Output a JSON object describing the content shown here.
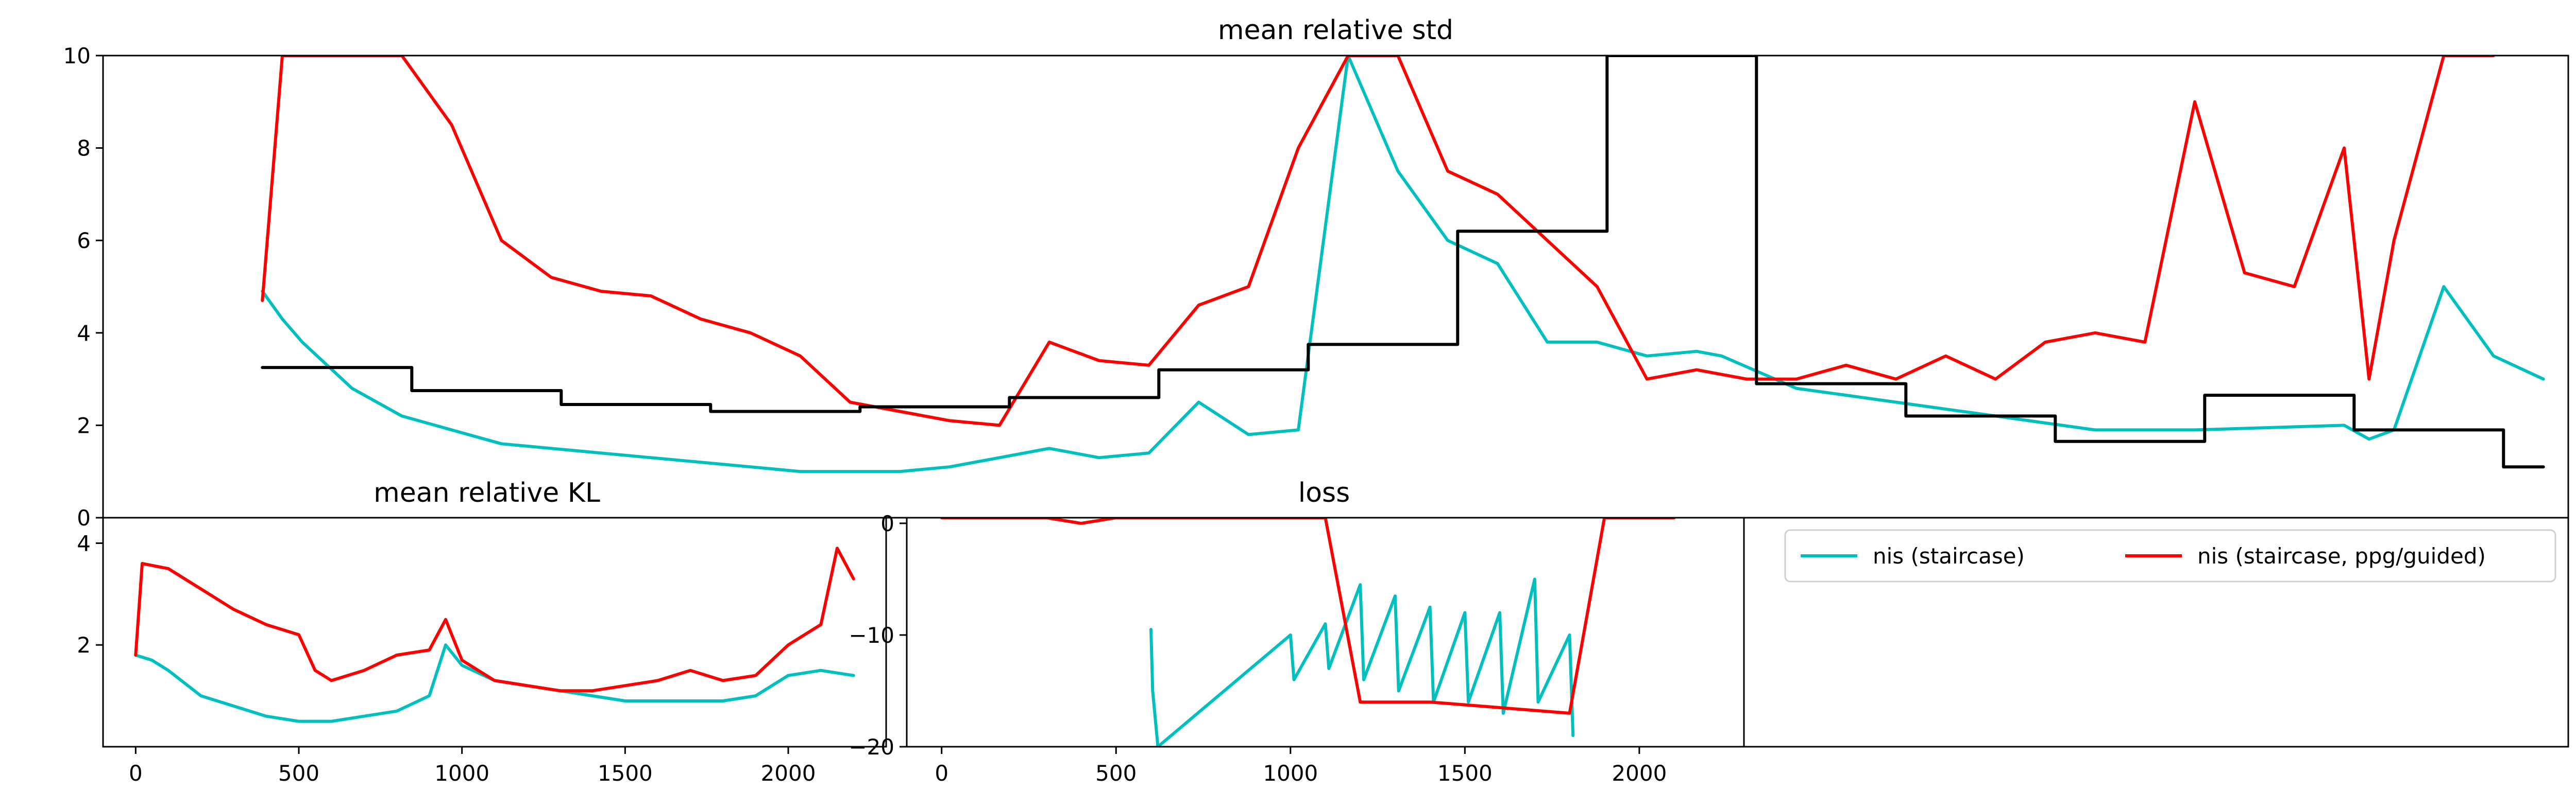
{
  "chart_data": [
    {
      "type": "line",
      "title": "mean relative std",
      "xlabel": "",
      "ylabel": "",
      "xlim": [
        -100,
        4850
      ],
      "ylim": [
        0,
        10
      ],
      "yticks": [
        0,
        2,
        4,
        6,
        8,
        10
      ],
      "yticklabels": [
        "0",
        "2",
        "4",
        "6",
        "8",
        "10"
      ],
      "xticks_visible": false,
      "series": [
        {
          "color": "#00bfbf",
          "x": [
            220,
            260,
            300,
            400,
            500,
            600,
            700,
            800,
            900,
            1000,
            1100,
            1200,
            1300,
            1400,
            1500,
            1600,
            1700,
            1800,
            1900,
            2000,
            2100,
            2200,
            2300,
            2400,
            2500,
            2600,
            2700,
            2800,
            2900,
            3000,
            3100,
            3150,
            3300,
            3500,
            3700,
            3900,
            4000,
            4100,
            4400,
            4450,
            4500,
            4600,
            4700,
            4800
          ],
          "y": [
            4.9,
            4.3,
            3.8,
            2.8,
            2.2,
            1.9,
            1.6,
            1.5,
            1.4,
            1.3,
            1.2,
            1.1,
            1.0,
            1.0,
            1.0,
            1.1,
            1.3,
            1.5,
            1.3,
            1.4,
            2.5,
            1.8,
            1.9,
            10,
            7.5,
            6.0,
            5.5,
            3.8,
            3.8,
            3.5,
            3.6,
            3.5,
            2.8,
            2.5,
            2.2,
            1.9,
            1.9,
            1.9,
            2.0,
            1.7,
            1.9,
            5.0,
            3.5,
            3.0
          ]
        },
        {
          "color": "#ff0000",
          "x": [
            220,
            260,
            300,
            500,
            600,
            700,
            800,
            900,
            1000,
            1100,
            1200,
            1300,
            1400,
            1500,
            1600,
            1700,
            1800,
            1900,
            2000,
            2100,
            2200,
            2300,
            2400,
            2500,
            2600,
            2700,
            2800,
            2900,
            3000,
            3100,
            3200,
            3300,
            3400,
            3500,
            3600,
            3700,
            3800,
            3900,
            4000,
            4100,
            4200,
            4300,
            4400,
            4450,
            4500,
            4600,
            4700
          ],
          "y": [
            4.7,
            10,
            10,
            10,
            8.5,
            6.0,
            5.2,
            4.9,
            4.8,
            4.3,
            4.0,
            3.5,
            2.5,
            2.3,
            2.1,
            2.0,
            3.8,
            3.4,
            3.3,
            4.6,
            5.0,
            8.0,
            10,
            10,
            7.5,
            7.0,
            6.0,
            5.0,
            3.0,
            3.2,
            3.0,
            3.0,
            3.3,
            3.0,
            3.5,
            3.0,
            3.8,
            4.0,
            3.8,
            9.0,
            5.3,
            5.0,
            8.0,
            3.0,
            6.0,
            10,
            10
          ]
        },
        {
          "color": "#000000",
          "x": [
            220,
            520,
            520,
            820,
            820,
            1120,
            1120,
            1420,
            1420,
            1720,
            1720,
            2020,
            2020,
            2320,
            2320,
            2620,
            2620,
            2920,
            2920,
            3220,
            3220,
            3520,
            3520,
            3820,
            3820,
            4120,
            4120,
            4420,
            4420,
            4720,
            4720,
            4800
          ],
          "y": [
            3.25,
            3.25,
            2.75,
            2.75,
            2.45,
            2.45,
            2.3,
            2.3,
            2.4,
            2.4,
            2.6,
            2.6,
            3.2,
            3.2,
            3.75,
            3.75,
            6.2,
            6.2,
            10,
            10,
            2.9,
            2.9,
            2.2,
            2.2,
            1.65,
            1.65,
            2.65,
            2.65,
            1.9,
            1.9,
            1.1,
            1.1
          ]
        }
      ]
    },
    {
      "type": "line",
      "title": "mean relative KL",
      "xlabel": "",
      "ylabel": "",
      "xlim": [
        -100,
        2300
      ],
      "ylim": [
        0,
        4.5
      ],
      "yticks": [
        2,
        4
      ],
      "yticklabels": [
        "2",
        "4"
      ],
      "xticks": [
        0,
        500,
        1000,
        1500,
        2000
      ],
      "xticklabels": [
        "0",
        "500",
        "1000",
        "1500",
        "2000"
      ],
      "series": [
        {
          "color": "#00bfbf",
          "name": "nis (staircase)",
          "x": [
            0,
            50,
            100,
            200,
            300,
            400,
            500,
            600,
            700,
            800,
            900,
            950,
            1000,
            1100,
            1200,
            1300,
            1400,
            1500,
            1600,
            1700,
            1800,
            1900,
            2000,
            2100,
            2200
          ],
          "y": [
            1.8,
            1.7,
            1.5,
            1.0,
            0.8,
            0.6,
            0.5,
            0.5,
            0.6,
            0.7,
            1.0,
            2.0,
            1.6,
            1.3,
            1.2,
            1.1,
            1.0,
            0.9,
            0.9,
            0.9,
            0.9,
            1.0,
            1.4,
            1.5,
            1.4
          ]
        },
        {
          "color": "#ff0000",
          "name": "nis (staircase, ppg/guided)",
          "x": [
            0,
            20,
            100,
            200,
            300,
            400,
            500,
            550,
            600,
            700,
            800,
            900,
            950,
            1000,
            1100,
            1200,
            1300,
            1400,
            1500,
            1600,
            1700,
            1800,
            1900,
            2000,
            2100,
            2150,
            2200
          ],
          "y": [
            1.8,
            3.6,
            3.5,
            3.1,
            2.7,
            2.4,
            2.2,
            1.5,
            1.3,
            1.5,
            1.8,
            1.9,
            2.5,
            1.7,
            1.3,
            1.2,
            1.1,
            1.1,
            1.2,
            1.3,
            1.5,
            1.3,
            1.4,
            2.0,
            2.4,
            3.9,
            3.3
          ]
        }
      ]
    },
    {
      "type": "line",
      "title": "loss",
      "xlabel": "",
      "ylabel": "",
      "xlim": [
        -100,
        2300
      ],
      "ylim": [
        -20,
        0.5
      ],
      "yticks": [
        0,
        -10,
        -20
      ],
      "yticklabels": [
        "0",
        "−10",
        "−20"
      ],
      "xticks": [
        0,
        500,
        1000,
        1500,
        2000
      ],
      "xticklabels": [
        "0",
        "500",
        "1000",
        "1500",
        "2000"
      ],
      "series": [
        {
          "color": "#00bfbf",
          "x": [
            600,
            605,
            620,
            1000,
            1010,
            1100,
            1110,
            1200,
            1210,
            1300,
            1310,
            1400,
            1410,
            1500,
            1510,
            1600,
            1610,
            1700,
            1710,
            1800,
            1810
          ],
          "y": [
            -9.5,
            -15,
            -20,
            -10,
            -14,
            -9,
            -13,
            -5.5,
            -14,
            -6.5,
            -15,
            -7.5,
            -16,
            -8,
            -16,
            -8,
            -17,
            -5,
            -16,
            -10,
            -19
          ]
        },
        {
          "color": "#ff0000",
          "x": [
            0,
            100,
            200,
            300,
            400,
            500,
            700,
            800,
            900,
            1000,
            1100,
            1200,
            1400,
            1800,
            1900,
            2000,
            2100
          ],
          "y": [
            0.5,
            0.5,
            0.5,
            0.5,
            0,
            0.5,
            0.5,
            0.5,
            0.5,
            0.5,
            0.5,
            -16,
            -16,
            -17,
            0.5,
            0.5,
            0.5
          ]
        }
      ]
    }
  ],
  "legend": {
    "placement": "top",
    "entries": [
      {
        "label": "nis (staircase)",
        "color": "#00bfbf"
      },
      {
        "label": "nis (staircase, ppg/guided)",
        "color": "#ff0000"
      }
    ]
  }
}
